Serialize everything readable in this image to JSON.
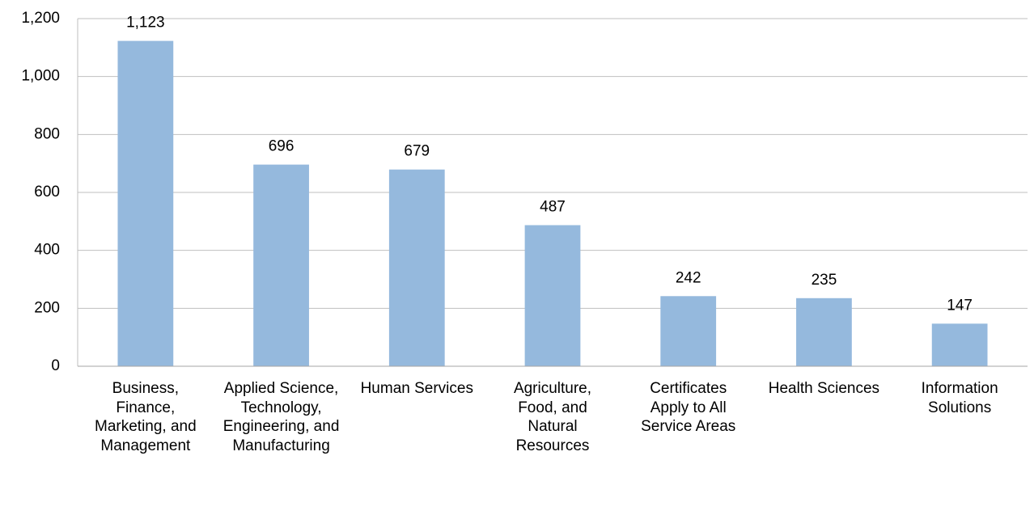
{
  "chart_data": {
    "type": "bar",
    "categories": [
      "Business, Finance, Marketing, and Management",
      "Applied Science, Technology, Engineering, and Manufacturing",
      "Human Services",
      "Agriculture, Food, and Natural Resources",
      "Certificates Apply to All Service Areas",
      "Health Sciences",
      "Information Solutions"
    ],
    "values": [
      1123,
      696,
      679,
      487,
      242,
      235,
      147
    ],
    "value_labels": [
      "1,123",
      "696",
      "679",
      "487",
      "242",
      "235",
      "147"
    ],
    "color": "#95b9dd",
    "ylim": [
      0,
      1200
    ],
    "yticks": [
      0,
      200,
      400,
      600,
      800,
      {
        "value": 1000,
        "label": "1,000"
      },
      {
        "value": 1200,
        "label": "1,200"
      }
    ],
    "grid": true
  }
}
